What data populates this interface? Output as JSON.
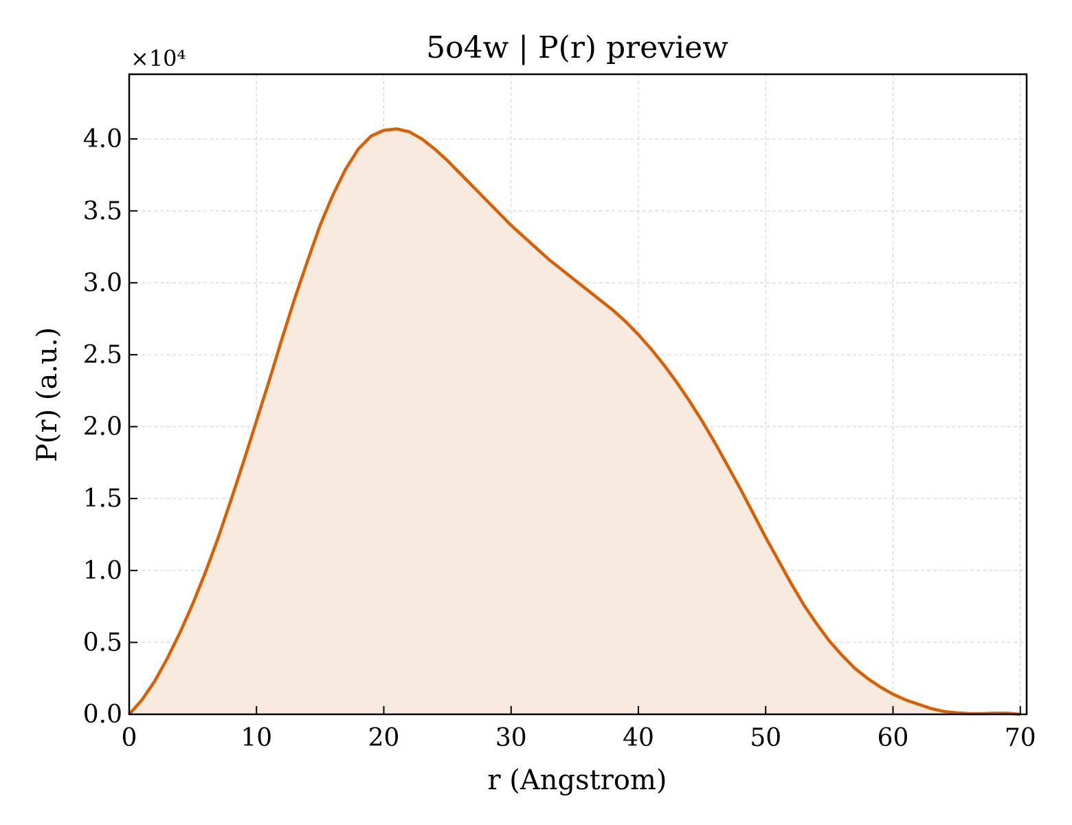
{
  "chart_data": {
    "type": "area",
    "title": "5o4w | P(r) preview",
    "xlabel": "r (Angstrom)",
    "ylabel": "P(r) (a.u.)",
    "y_offset_label": "×10⁴",
    "xlim": [
      0,
      70.5
    ],
    "ylim": [
      0,
      44500
    ],
    "grid": true,
    "x_ticks": [
      0,
      10,
      20,
      30,
      40,
      50,
      60,
      70
    ],
    "x_tick_labels": [
      "0",
      "10",
      "20",
      "30",
      "40",
      "50",
      "60",
      "70"
    ],
    "y_ticks": [
      0,
      5000,
      10000,
      15000,
      20000,
      25000,
      30000,
      35000,
      40000
    ],
    "y_tick_labels": [
      "0.0",
      "0.5",
      "1.0",
      "1.5",
      "2.0",
      "2.5",
      "3.0",
      "3.5",
      "4.0"
    ],
    "line_color": "#d95f02",
    "fill_color": "#f8eadf",
    "series": [
      {
        "x": [
          0,
          1,
          2,
          3,
          4,
          5,
          6,
          7,
          8,
          9,
          10,
          11,
          12,
          13,
          14,
          15,
          16,
          17,
          18,
          19,
          20,
          21,
          22,
          23,
          24,
          25,
          26,
          27,
          28,
          29,
          30,
          31,
          32,
          33,
          34,
          35,
          36,
          37,
          38,
          39,
          40,
          41,
          42,
          43,
          44,
          45,
          46,
          47,
          48,
          49,
          50,
          51,
          52,
          53,
          54,
          55,
          56,
          57,
          58,
          59,
          60,
          61,
          62,
          63,
          64,
          65,
          66,
          67,
          68,
          69,
          70
        ],
        "y": [
          0,
          1000,
          2300,
          3900,
          5700,
          7700,
          9900,
          12300,
          14900,
          17600,
          20400,
          23200,
          26100,
          28900,
          31500,
          34000,
          36100,
          37900,
          39300,
          40200,
          40600,
          40700,
          40500,
          40000,
          39300,
          38500,
          37600,
          36700,
          35800,
          34900,
          34000,
          33200,
          32400,
          31600,
          30900,
          30200,
          29500,
          28800,
          28100,
          27300,
          26400,
          25400,
          24300,
          23100,
          21800,
          20400,
          18900,
          17300,
          15700,
          14000,
          12300,
          10700,
          9100,
          7600,
          6300,
          5100,
          4100,
          3200,
          2500,
          1900,
          1400,
          1000,
          700,
          400,
          200,
          100,
          50,
          50,
          80,
          80,
          0
        ]
      }
    ]
  }
}
